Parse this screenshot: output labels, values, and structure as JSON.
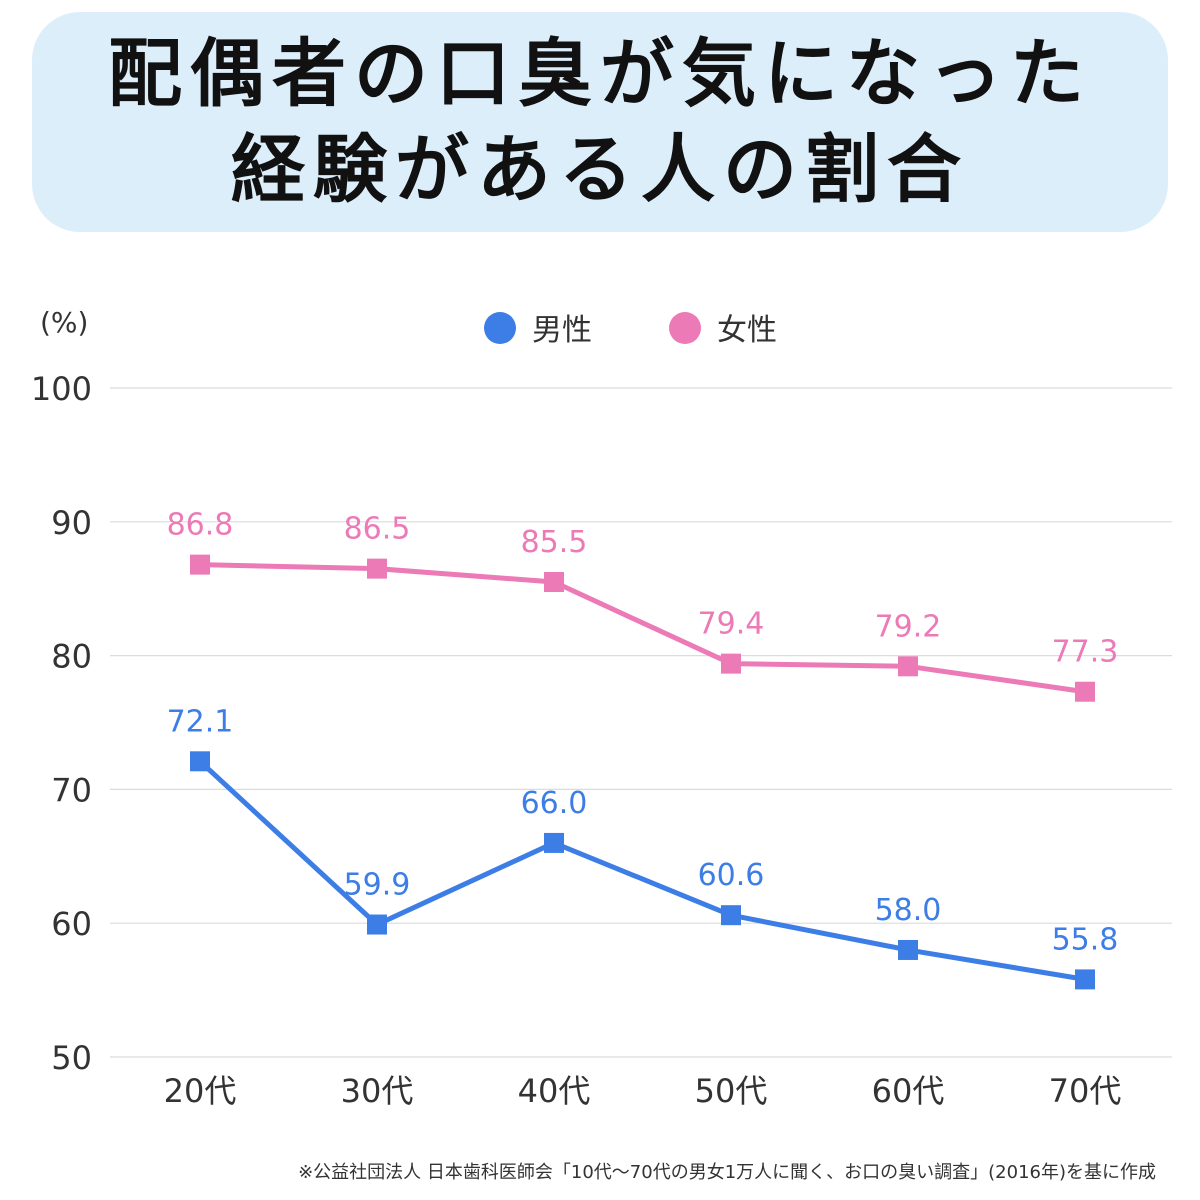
{
  "title": {
    "line1": "配偶者の口臭が気になった",
    "line2": "経験がある人の割合"
  },
  "source_note": "※公益社団法人 日本歯科医師会「10代〜70代の男女1万人に聞く、お口の臭い調査」(2016年)を基に作成",
  "chart_data": {
    "type": "line",
    "title": "配偶者の口臭が気になった経験がある人の割合",
    "ylabel": "(%)",
    "xlabel": "",
    "ylim": [
      50,
      100
    ],
    "yticks": [
      50,
      60,
      70,
      80,
      90,
      100
    ],
    "grid": true,
    "legend_position": "top-center",
    "categories": [
      "20代",
      "30代",
      "40代",
      "50代",
      "60代",
      "70代"
    ],
    "series": [
      {
        "name": "男性",
        "color": "#3d7ee6",
        "values": [
          72.1,
          59.9,
          66.0,
          60.6,
          58.0,
          55.8
        ],
        "labels": [
          "72.1",
          "59.9",
          "66.0",
          "60.6",
          "58.0",
          "55.8"
        ]
      },
      {
        "name": "女性",
        "color": "#ec7ab6",
        "values": [
          86.8,
          86.5,
          85.5,
          79.4,
          79.2,
          77.3
        ],
        "labels": [
          "86.8",
          "86.5",
          "85.5",
          "79.4",
          "79.2",
          "77.3"
        ]
      }
    ]
  }
}
